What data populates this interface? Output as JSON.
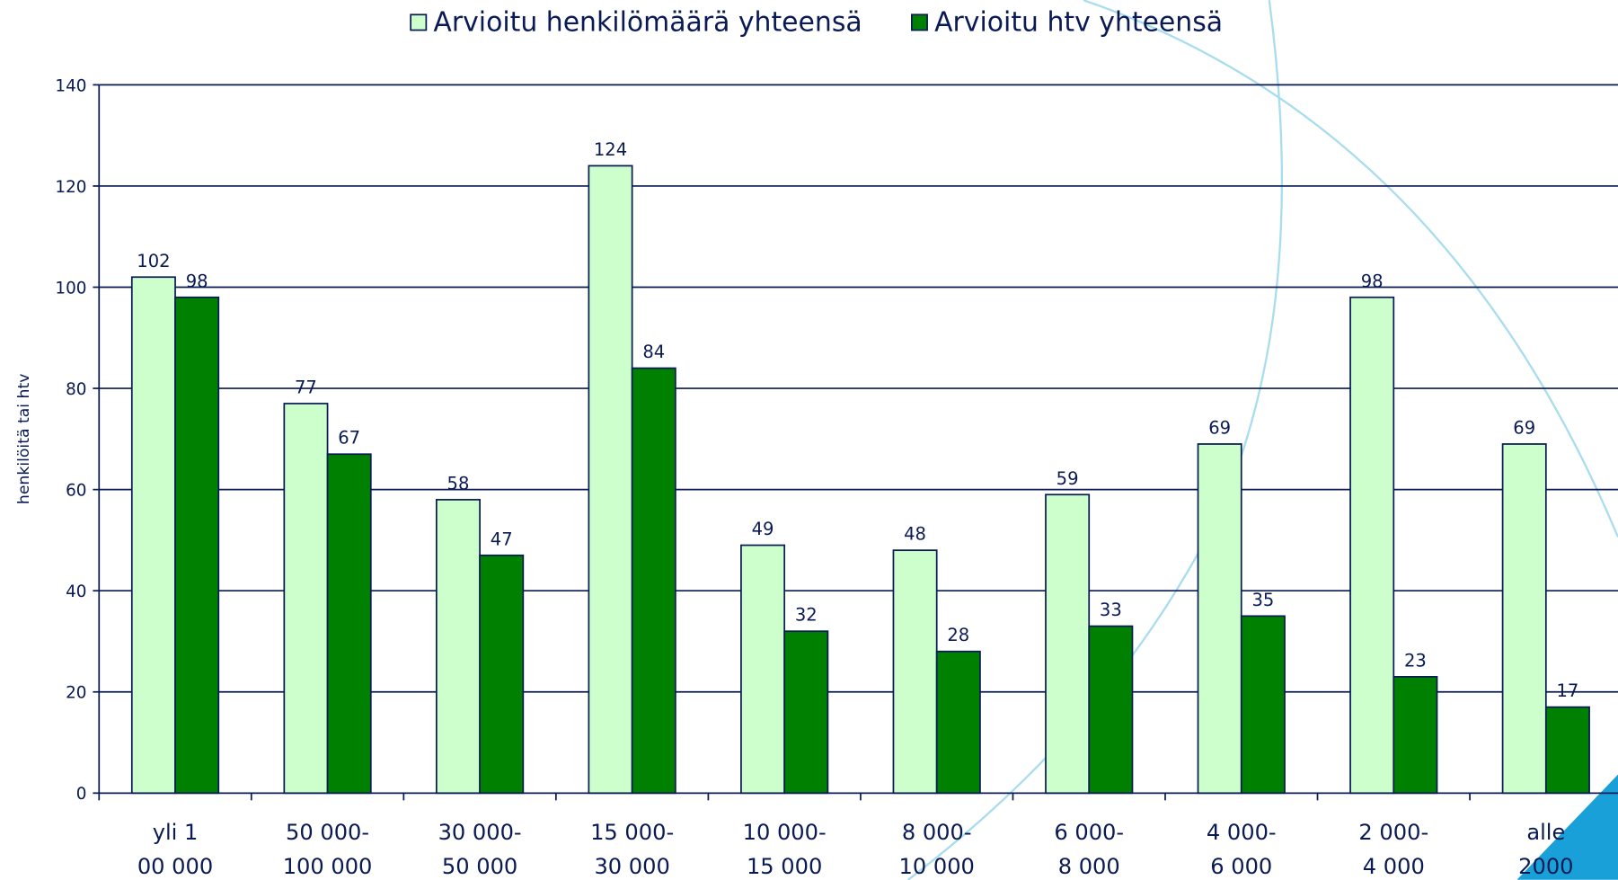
{
  "chart_data": {
    "type": "bar",
    "y_label": "henkilöitä tai htv",
    "categories": [
      [
        "yli 1",
        "00 000"
      ],
      [
        "50 000-",
        "100 000"
      ],
      [
        "30 000-",
        "50 000"
      ],
      [
        "15 000-",
        "30 000"
      ],
      [
        "10 000-",
        "15 000"
      ],
      [
        "8 000-",
        "10 000"
      ],
      [
        "6 000-",
        "8 000"
      ],
      [
        "4 000-",
        "6 000"
      ],
      [
        "2 000-",
        "4 000"
      ],
      [
        "alle",
        "2000"
      ]
    ],
    "series": [
      {
        "name": "Arvioitu henkilömäärä yhteensä",
        "color": "#ccffcc",
        "values": [
          102,
          77,
          58,
          124,
          49,
          48,
          59,
          69,
          98,
          69
        ]
      },
      {
        "name": "Arvioitu htv yhteensä",
        "color": "#008000",
        "values": [
          98,
          67,
          47,
          84,
          32,
          28,
          33,
          35,
          23,
          17
        ]
      }
    ],
    "ylim": [
      0,
      140
    ],
    "yticks": [
      0,
      20,
      40,
      60,
      80,
      100,
      120,
      140
    ],
    "grid": true,
    "legend": "top",
    "data_labels": true
  }
}
